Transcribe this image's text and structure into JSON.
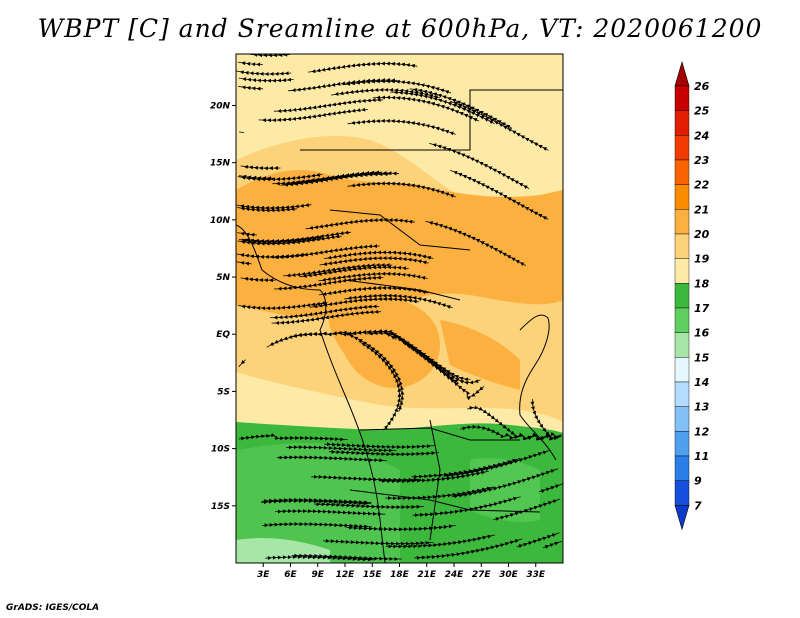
{
  "title": "WBPT [C] and Sreamline at 600hPa, VT: 2020061200",
  "footer": "GrADS: IGES/COLA",
  "map": {
    "lon_range": [
      0,
      36
    ],
    "lat_range": [
      -20,
      24.5
    ],
    "x_ticks": [
      "3E",
      "6E",
      "9E",
      "12E",
      "15E",
      "18E",
      "21E",
      "24E",
      "27E",
      "30E",
      "33E"
    ],
    "x_tick_values": [
      3,
      6,
      9,
      12,
      15,
      18,
      21,
      24,
      27,
      30,
      33
    ],
    "y_ticks": [
      "20N",
      "15N",
      "10N",
      "5N",
      "EQ",
      "5S",
      "10S",
      "15S"
    ],
    "y_tick_values": [
      20,
      15,
      10,
      5,
      0,
      -5,
      -10,
      -15
    ]
  },
  "colorbar": {
    "levels": [
      "26",
      "25",
      "24",
      "23",
      "22",
      "21",
      "20",
      "19",
      "18",
      "17",
      "16",
      "15",
      "14",
      "13",
      "12",
      "11",
      "9",
      "7"
    ],
    "colors": [
      "#a50000",
      "#c80000",
      "#e11e00",
      "#f03c00",
      "#fa6400",
      "#fa8c00",
      "#fbb040",
      "#fcd27a",
      "#fdeaa6",
      "#3cb83c",
      "#5fcf5f",
      "#a6e6a6",
      "#e6f8ff",
      "#b4dcff",
      "#82c0f5",
      "#50a0f0",
      "#2a7ee6",
      "#1450dc",
      "#0a3cc8"
    ]
  },
  "fill_colors": {
    "green_dark": "#3cb83c",
    "green_mid": "#5fcf5f",
    "green_light": "#a6e6a6",
    "orange": "#fbb040",
    "light_orange": "#fcd27a",
    "pale_yellow": "#fdeaa6"
  }
}
